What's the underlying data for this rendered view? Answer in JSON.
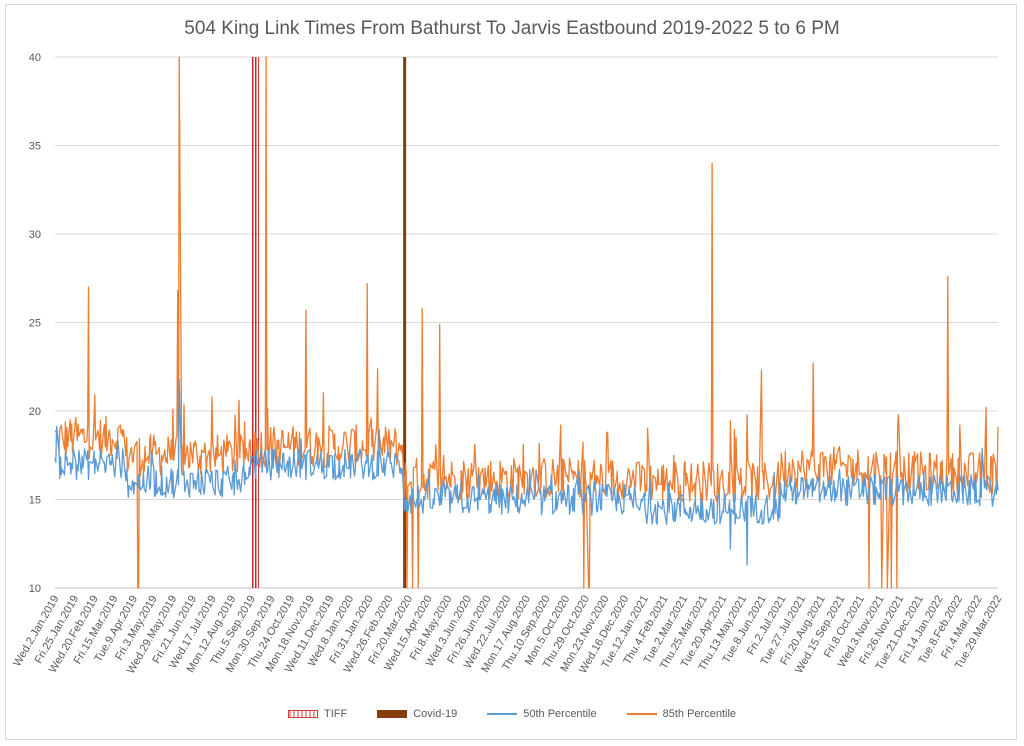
{
  "chart_data": {
    "type": "line",
    "title": "504 King Link Times From Bathurst To Jarvis Eastbound 2019-2022 5 to 6 PM",
    "xlabel": "",
    "ylabel": "",
    "ylim": [
      10,
      40
    ],
    "yticks": [
      "10",
      "15",
      "20",
      "25",
      "30",
      "35",
      "40"
    ],
    "grid": true,
    "legend_position": "bottom",
    "x_range": [
      "2019-01-02",
      "2022-03-31"
    ],
    "x_tick_labels": [
      "Wed.2.Jan.2019",
      "Fri.25.Jan.2019",
      "Wed.20.Feb.2019",
      "Fri.15.Mar.2019",
      "Tue.9.Apr.2019",
      "Fri.3.May.2019",
      "Wed.29.May.2019",
      "Fri.21.Jun.2019",
      "Wed.17.Jul.2019",
      "Mon.12.Aug.2019",
      "Thu.5.Sep.2019",
      "Mon.30.Sep.2019",
      "Thu.24.Oct.2019",
      "Mon.18.Nov.2019",
      "Wed.11.Dec.2019",
      "Wed.8.Jan.2020",
      "Fri.31.Jan.2020",
      "Wed.26.Feb.2020",
      "Fri.20.Mar.2020",
      "Wed.15.Apr.2020",
      "Fri.8.May.2020",
      "Wed.3.Jun.2020",
      "Fri.26.Jun.2020",
      "Wed.22.Jul.2020",
      "Mon.17.Aug.2020",
      "Thu.10.Sep.2020",
      "Mon.5.Oct.2020",
      "Thu.29.Oct.2020",
      "Mon.23.Nov.2020",
      "Wed.16.Dec.2020",
      "Tue.12.Jan.2021",
      "Thu.4.Feb.2021",
      "Tue.2.Mar.2021",
      "Thu.25.Mar.2021",
      "Tue.20.Apr.2021",
      "Thu.13.May.2021",
      "Tue.8.Jun.2021",
      "Fri.2.Jul.2021",
      "Tue.27.Jul.2021",
      "Fri.20.Aug.2021",
      "Wed.15.Sep.2021",
      "Fri.8.Oct.2021",
      "Wed.3.Nov.2021",
      "Fri.26.Nov.2021",
      "Tue.21.Dec.2021",
      "Fri.14.Jan.2022",
      "Tue.8.Feb.2022",
      "Fri.4.Mar.2022",
      "Tue.29.Mar.2022"
    ],
    "series": [
      {
        "name": "TIFF",
        "kind": "marker-bar",
        "dates": [
          "2019-09-05",
          "2019-09-06",
          "2019-09-07",
          "2019-09-08",
          "2019-09-09",
          "2019-09-10",
          "2019-09-11",
          "2019-09-12",
          "2019-09-13",
          "2019-09-14",
          "2019-09-15"
        ],
        "color": "#c00000"
      },
      {
        "name": "Covid-19",
        "kind": "marker-bar",
        "dates": [
          "2020-03-16"
        ],
        "color": "#843c0c"
      },
      {
        "name": "50th Percentile",
        "kind": "line",
        "color": "#5b9bd5",
        "period_levels": [
          {
            "from": "2019-01-02",
            "to": "2019-03-31",
            "typical": 17.0
          },
          {
            "from": "2019-04-01",
            "to": "2019-08-31",
            "typical": 16.0
          },
          {
            "from": "2019-09-01",
            "to": "2020-03-15",
            "typical": 17.0
          },
          {
            "from": "2020-03-16",
            "to": "2020-12-31",
            "typical": 15.0
          },
          {
            "from": "2021-01-01",
            "to": "2021-06-30",
            "typical": 14.5
          },
          {
            "from": "2021-07-01",
            "to": "2021-11-30",
            "typical": 15.5
          },
          {
            "from": "2021-12-01",
            "to": "2022-03-31",
            "typical": 15.5
          }
        ],
        "notable": [
          {
            "date": "2019-06-07",
            "value": 21.8
          },
          {
            "date": "2021-05-20",
            "value": 11.3
          },
          {
            "date": "2021-04-29",
            "value": 12.2
          }
        ]
      },
      {
        "name": "85th Percentile",
        "kind": "line",
        "color": "#ed7d31",
        "period_levels": [
          {
            "from": "2019-01-02",
            "to": "2019-03-31",
            "typical": 18.5
          },
          {
            "from": "2019-04-01",
            "to": "2019-08-31",
            "typical": 17.5
          },
          {
            "from": "2019-09-01",
            "to": "2020-03-15",
            "typical": 18.0
          },
          {
            "from": "2020-03-16",
            "to": "2020-12-31",
            "typical": 16.2
          },
          {
            "from": "2021-01-01",
            "to": "2021-06-30",
            "typical": 16.0
          },
          {
            "from": "2021-07-01",
            "to": "2021-11-30",
            "typical": 16.8
          },
          {
            "from": "2021-12-01",
            "to": "2022-03-31",
            "typical": 16.5
          }
        ],
        "notable": [
          {
            "date": "2019-02-13",
            "value": 27.0
          },
          {
            "date": "2019-06-07",
            "value": 40.0
          },
          {
            "date": "2019-06-05",
            "value": 26.8
          },
          {
            "date": "2019-04-17",
            "value": 10.0
          },
          {
            "date": "2019-04-16",
            "value": 10.0
          },
          {
            "date": "2019-09-24",
            "value": 40.0
          },
          {
            "date": "2019-11-13",
            "value": 25.7
          },
          {
            "date": "2020-01-29",
            "value": 27.2
          },
          {
            "date": "2020-04-07",
            "value": 25.8
          },
          {
            "date": "2020-04-29",
            "value": 24.9
          },
          {
            "date": "2020-03-19",
            "value": 10.0
          },
          {
            "date": "2020-03-26",
            "value": 10.0
          },
          {
            "date": "2020-04-02",
            "value": 10.0
          },
          {
            "date": "2020-10-27",
            "value": 10.0
          },
          {
            "date": "2020-11-02",
            "value": 10.0
          },
          {
            "date": "2020-11-03",
            "value": 10.0
          },
          {
            "date": "2021-04-06",
            "value": 34.0
          },
          {
            "date": "2021-06-07",
            "value": 22.3
          },
          {
            "date": "2021-08-11",
            "value": 22.7
          },
          {
            "date": "2021-10-20",
            "value": 10.0
          },
          {
            "date": "2021-11-05",
            "value": 10.0
          },
          {
            "date": "2021-11-12",
            "value": 10.0
          },
          {
            "date": "2021-11-17",
            "value": 10.0
          },
          {
            "date": "2021-11-24",
            "value": 10.0
          },
          {
            "date": "2022-01-27",
            "value": 27.6
          },
          {
            "date": "2022-03-16",
            "value": 20.2
          },
          {
            "date": "2022-03-31",
            "value": 19.1
          }
        ]
      }
    ]
  }
}
